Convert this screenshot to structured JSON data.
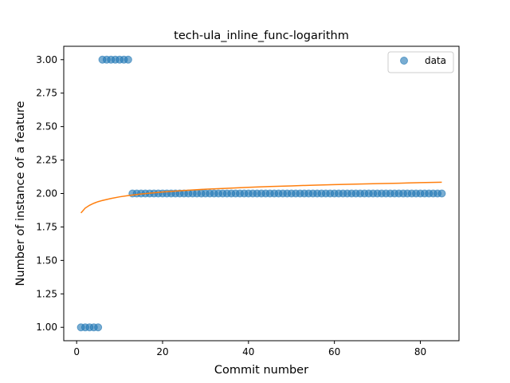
{
  "chart_data": {
    "type": "scatter",
    "title": "tech-ula_inline_func-logarithm",
    "xlabel": "Commit number",
    "ylabel": "Number of instance of a feature",
    "xlim": [
      -3,
      89
    ],
    "ylim": [
      0.9,
      3.1
    ],
    "xticks": [
      0,
      20,
      40,
      60,
      80
    ],
    "yticks": [
      1.0,
      1.25,
      1.5,
      1.75,
      2.0,
      2.25,
      2.5,
      2.75,
      3.0
    ],
    "xtick_labels": [
      "0",
      "20",
      "40",
      "60",
      "80"
    ],
    "ytick_labels": [
      "1.00",
      "1.25",
      "1.50",
      "1.75",
      "2.00",
      "2.25",
      "2.50",
      "2.75",
      "3.00"
    ],
    "grid": false,
    "legend": {
      "placement": "top-right",
      "entries": [
        "data"
      ]
    },
    "series": [
      {
        "name": "data",
        "kind": "scatter",
        "color": "#1f77b4",
        "x": [
          1,
          2,
          3,
          4,
          5,
          6,
          7,
          8,
          9,
          10,
          11,
          12,
          13,
          14,
          15,
          16,
          17,
          18,
          19,
          20,
          21,
          22,
          23,
          24,
          25,
          26,
          27,
          28,
          29,
          30,
          31,
          32,
          33,
          34,
          35,
          36,
          37,
          38,
          39,
          40,
          41,
          42,
          43,
          44,
          45,
          46,
          47,
          48,
          49,
          50,
          51,
          52,
          53,
          54,
          55,
          56,
          57,
          58,
          59,
          60,
          61,
          62,
          63,
          64,
          65,
          66,
          67,
          68,
          69,
          70,
          71,
          72,
          73,
          74,
          75,
          76,
          77,
          78,
          79,
          80,
          81,
          82,
          83,
          84,
          85
        ],
        "y": [
          1,
          1,
          1,
          1,
          1,
          3,
          3,
          3,
          3,
          3,
          3,
          3,
          2,
          2,
          2,
          2,
          2,
          2,
          2,
          2,
          2,
          2,
          2,
          2,
          2,
          2,
          2,
          2,
          2,
          2,
          2,
          2,
          2,
          2,
          2,
          2,
          2,
          2,
          2,
          2,
          2,
          2,
          2,
          2,
          2,
          2,
          2,
          2,
          2,
          2,
          2,
          2,
          2,
          2,
          2,
          2,
          2,
          2,
          2,
          2,
          2,
          2,
          2,
          2,
          2,
          2,
          2,
          2,
          2,
          2,
          2,
          2,
          2,
          2,
          2,
          2,
          2,
          2,
          2,
          2,
          2,
          2,
          2,
          2,
          2
        ]
      },
      {
        "kind": "line",
        "color": "#ff7f0e",
        "x": [
          1,
          2,
          3,
          4,
          5,
          6,
          8,
          10,
          12,
          15,
          20,
          25,
          30,
          35,
          40,
          45,
          50,
          55,
          60,
          65,
          70,
          75,
          80,
          85
        ],
        "y": [
          1.855,
          1.891,
          1.912,
          1.927,
          1.939,
          1.948,
          1.963,
          1.975,
          1.984,
          1.996,
          2.011,
          2.022,
          2.032,
          2.039,
          2.046,
          2.052,
          2.057,
          2.062,
          2.066,
          2.07,
          2.074,
          2.077,
          2.081,
          2.084
        ]
      }
    ]
  }
}
